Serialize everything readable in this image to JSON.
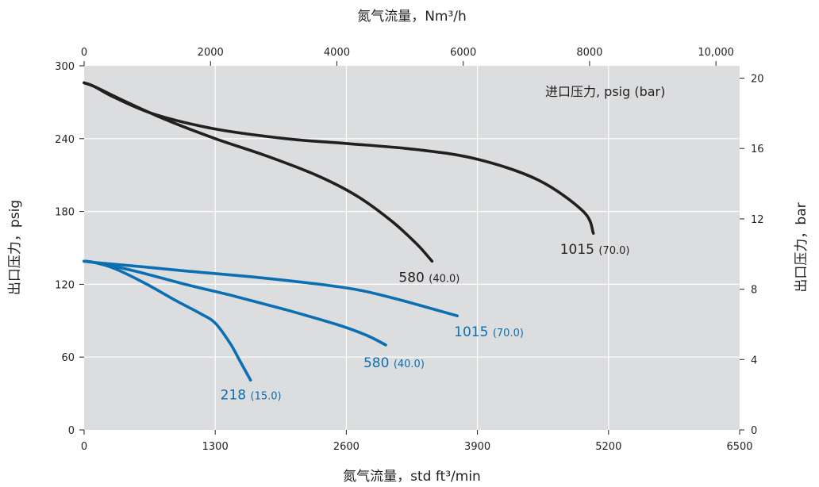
{
  "chart_data": {
    "type": "line",
    "title": "",
    "xlabel_bottom": "氮气流量，std ft³/min",
    "xlabel_top": "氮气流量，Nm³/h",
    "ylabel_left": "出口压力，psig",
    "ylabel_right": "出口压力，bar",
    "legend_title": "进口压力, psig (bar)",
    "x_bottom": {
      "ticks": [
        0,
        1300,
        2600,
        3900,
        5200,
        6500
      ],
      "tick_labels": [
        "0",
        "1300",
        "2600",
        "3900",
        "5200",
        "6500"
      ],
      "range": [
        0,
        6500
      ]
    },
    "x_top": {
      "ticks": [
        0,
        2000,
        4000,
        6000,
        8000,
        10000
      ],
      "tick_labels": [
        "0",
        "2000",
        "4000",
        "6000",
        "8000",
        "10,000"
      ],
      "range": [
        0,
        10375
      ]
    },
    "y_left": {
      "ticks": [
        0,
        60,
        120,
        180,
        240,
        300
      ],
      "tick_labels": [
        "0",
        "60",
        "120",
        "180",
        "240",
        "300"
      ],
      "range": [
        0,
        300
      ]
    },
    "y_right": {
      "ticks": [
        0,
        4,
        8,
        12,
        16,
        20
      ],
      "tick_labels": [
        "0",
        "4",
        "8",
        "12",
        "16",
        "20"
      ],
      "range": [
        0,
        20.7
      ]
    },
    "grid": true,
    "colors": {
      "plot_bg": "#dcdddf",
      "grid": "#ffffff",
      "black_series": "#231f20",
      "blue_series": "#0b6fb1"
    },
    "series": [
      {
        "inlet": "1015",
        "inlet_bar": "(70.0)",
        "color": "black",
        "x": [
          0,
          100,
          300,
          700,
          1300,
          2000,
          2600,
          3300,
          3900,
          4500,
          4950,
          5050
        ],
        "y": [
          286,
          283,
          274,
          260,
          248,
          240,
          236,
          231,
          223,
          206,
          180,
          162
        ]
      },
      {
        "inlet": "580",
        "inlet_bar": "(40.0)",
        "color": "black",
        "x": [
          0,
          100,
          400,
          800,
          1300,
          1800,
          2300,
          2700,
          3050,
          3300,
          3450
        ],
        "y": [
          286,
          283,
          271,
          256,
          240,
          226,
          210,
          193,
          172,
          153,
          139
        ]
      },
      {
        "inlet": "1015",
        "inlet_bar": "(70.0)",
        "color": "blue",
        "x": [
          0,
          100,
          500,
          1000,
          1800,
          2600,
          3000,
          3400,
          3700
        ],
        "y": [
          139,
          138,
          135,
          131,
          125,
          117,
          110,
          101,
          94
        ]
      },
      {
        "inlet": "580",
        "inlet_bar": "(40.0)",
        "color": "blue",
        "x": [
          0,
          100,
          500,
          1000,
          1500,
          2000,
          2500,
          2800,
          2990
        ],
        "y": [
          139,
          138,
          131,
          120,
          110,
          99,
          87,
          78,
          70
        ]
      },
      {
        "inlet": "218",
        "inlet_bar": "(15.0)",
        "color": "blue",
        "x": [
          0,
          100,
          300,
          600,
          900,
          1150,
          1300,
          1450,
          1550,
          1650
        ],
        "y": [
          139,
          138,
          133,
          121,
          107,
          96,
          88,
          71,
          56,
          41
        ]
      }
    ]
  }
}
